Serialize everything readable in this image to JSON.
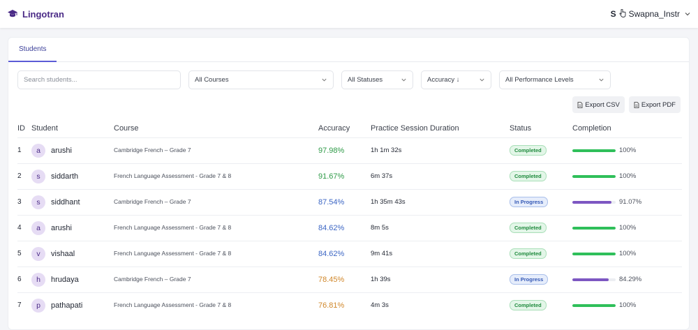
{
  "app": {
    "name": "Lingotran",
    "user_initial": "S",
    "user_name": "Swapna_Instr"
  },
  "tabs": [
    {
      "label": "Students",
      "active": true
    }
  ],
  "filters": {
    "search_placeholder": "Search students...",
    "course": "All Courses",
    "status": "All Statuses",
    "sort": "Accuracy ↓",
    "performance": "All Performance Levels"
  },
  "exports": {
    "csv": "Export CSV",
    "pdf": "Export PDF"
  },
  "table": {
    "headers": {
      "id": "ID",
      "student": "Student",
      "course": "Course",
      "accuracy": "Accuracy",
      "duration": "Practice Session Duration",
      "status": "Status",
      "completion": "Completion"
    },
    "rows": [
      {
        "id": "1",
        "initial": "a",
        "student": "arushi",
        "course": "Cambridge French – Grade 7",
        "accuracy": "97.98%",
        "acc_color": "#2e9a47",
        "duration": "1h 1m 32s",
        "status": "Completed",
        "completion": "100%",
        "completion_value": 100
      },
      {
        "id": "2",
        "initial": "s",
        "student": "siddarth",
        "course": "French Language Assessment - Grade 7 & 8",
        "accuracy": "91.67%",
        "acc_color": "#2e9a47",
        "duration": "6m 37s",
        "status": "Completed",
        "completion": "100%",
        "completion_value": 100
      },
      {
        "id": "3",
        "initial": "s",
        "student": "siddhant",
        "course": "Cambridge French – Grade 7",
        "accuracy": "87.54%",
        "acc_color": "#3c66c4",
        "duration": "1h 35m 43s",
        "status": "In Progress",
        "completion": "91.07%",
        "completion_value": 91.07
      },
      {
        "id": "4",
        "initial": "a",
        "student": "arushi",
        "course": "French Language Assessment - Grade 7 & 8",
        "accuracy": "84.62%",
        "acc_color": "#3c66c4",
        "duration": "8m 5s",
        "status": "Completed",
        "completion": "100%",
        "completion_value": 100
      },
      {
        "id": "5",
        "initial": "v",
        "student": "vishaal",
        "course": "French Language Assessment - Grade 7 & 8",
        "accuracy": "84.62%",
        "acc_color": "#3c66c4",
        "duration": "9m 41s",
        "status": "Completed",
        "completion": "100%",
        "completion_value": 100
      },
      {
        "id": "6",
        "initial": "h",
        "student": "hrudaya",
        "course": "Cambridge French – Grade 7",
        "accuracy": "78.45%",
        "acc_color": "#d0872a",
        "duration": "1h 39s",
        "status": "In Progress",
        "completion": "84.29%",
        "completion_value": 84.29
      },
      {
        "id": "7",
        "initial": "p",
        "student": "pathapati",
        "course": "French Language Assessment - Grade 7 & 8",
        "accuracy": "76.81%",
        "acc_color": "#d0872a",
        "duration": "4m 3s",
        "status": "Completed",
        "completion": "100%",
        "completion_value": 100
      }
    ]
  },
  "colors": {
    "brand": "#4a2a86",
    "completed_bar": "#2fbf5a",
    "in_progress_bar": "#7d57c2",
    "completed_badge_bg": "#e3f6e8",
    "completed_badge_text": "#1f8a3d",
    "completed_badge_border": "#a9dfb8",
    "in_progress_badge_bg": "#e6edfb",
    "in_progress_badge_text": "#3458b5",
    "in_progress_badge_border": "#a9bfea"
  },
  "icons": {
    "logo": "graduation-cap-icon",
    "cursor": "hand-pointer-icon",
    "dropdown": "chevron-down-icon",
    "export": "document-icon"
  }
}
